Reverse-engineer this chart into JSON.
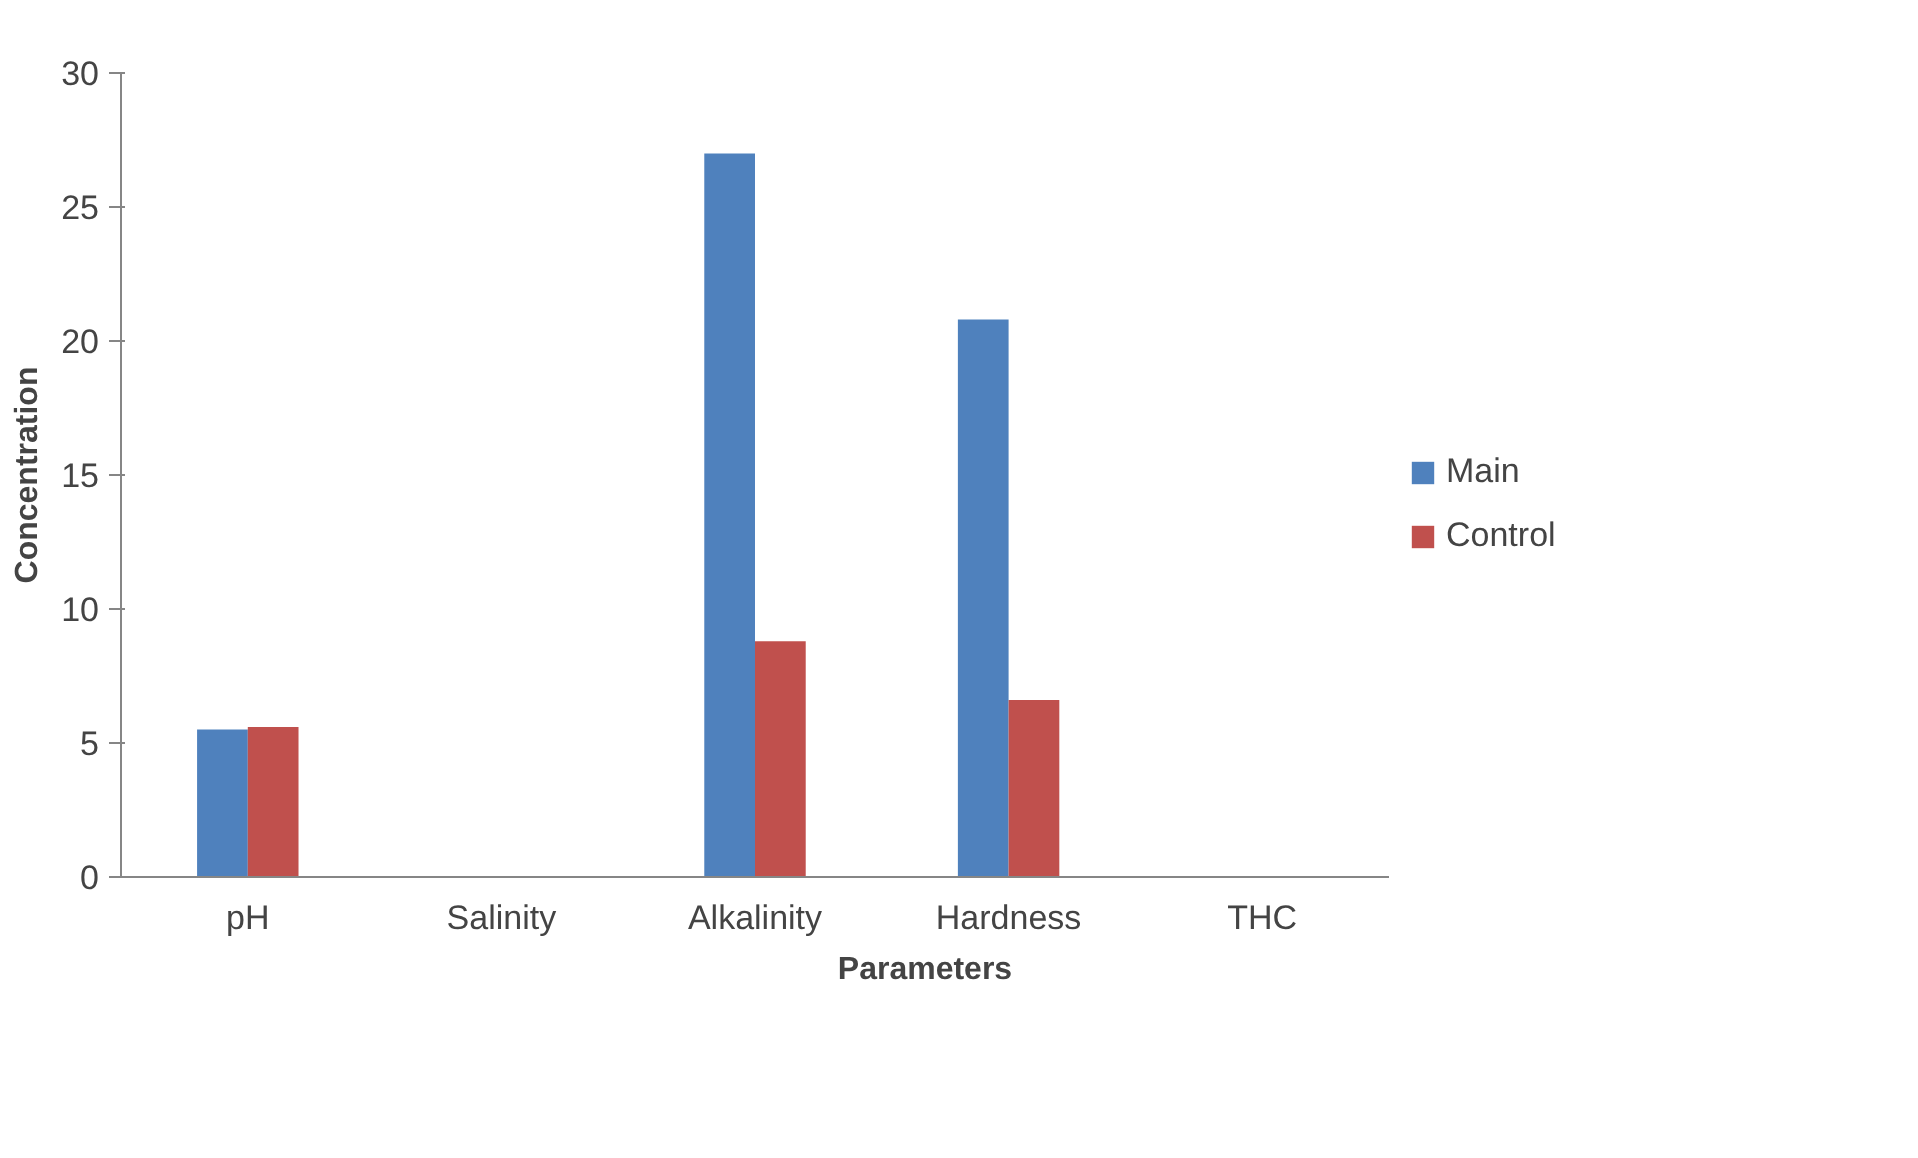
{
  "chart_data": {
    "type": "bar",
    "xlabel": "Parameters",
    "ylabel": "Concentration",
    "categories": [
      "pH",
      "Salinity",
      "Alkalinity",
      "Hardness",
      "THC"
    ],
    "series": [
      {
        "name": "Main",
        "color": "#4f81bd",
        "values": [
          5.5,
          0,
          27,
          20.8,
          0
        ]
      },
      {
        "name": "Control",
        "color": "#c0504d",
        "values": [
          5.6,
          0,
          8.8,
          6.6,
          0
        ]
      }
    ],
    "ylim": [
      0,
      30
    ],
    "yticks": [
      0,
      5,
      10,
      15,
      20,
      25,
      30
    ],
    "grid": false,
    "legend": "right"
  }
}
